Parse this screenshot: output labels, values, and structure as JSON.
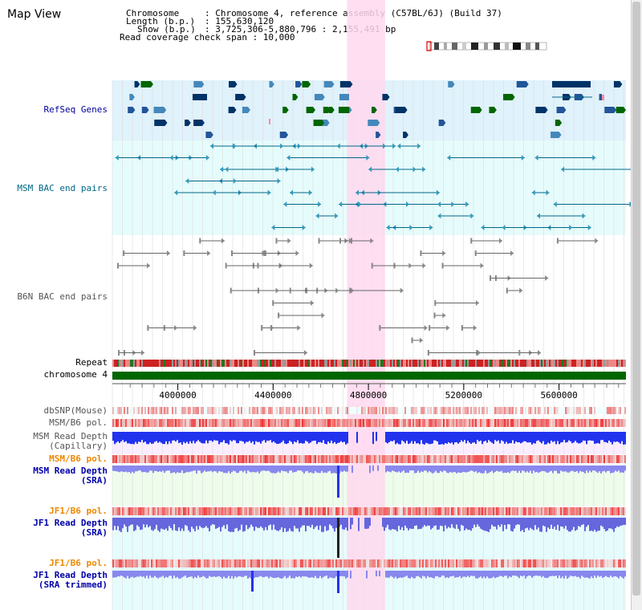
{
  "page": {
    "title": "Map View"
  },
  "header": {
    "chromosome_key": "Chromosome",
    "chromosome_val": ": Chromosome 4, reference assembly (C57BL/6J) (Build 37)",
    "length_key": "Length (b.p.)",
    "length_val": ": 155,630,120",
    "show_key": "Show (b.p.)",
    "show_val": ": 3,725,306-5,880,796 : 2,155,491 bp",
    "coverage_label": "Read coverage check span : 10,000"
  },
  "tracks": {
    "refseq": {
      "label": "RefSeq Genes",
      "color": "#000099",
      "bg": "#e0f2fb"
    },
    "msm_bac": {
      "label": "MSM BAC end pairs",
      "color": "#006688",
      "bg": "#e6fcfc"
    },
    "b6n_bac": {
      "label": "B6N BAC end pairs",
      "color": "#555555"
    },
    "repeat": {
      "label": "Repeat",
      "color": "#000000"
    },
    "chromosome": {
      "label": "chromosome 4",
      "color": "#000000",
      "bar": "#006600"
    },
    "dbsnp": {
      "label": "dbSNP(Mouse)",
      "color": "#555555"
    },
    "msm_b6_pol": {
      "label": "MSM/B6 pol.",
      "color": "#555555"
    },
    "msm_depth_cap": {
      "label": "MSM Read Depth\n(Capillary)",
      "color": "#555555"
    },
    "msm_b6_pol2": {
      "label": "MSM/B6 pol.",
      "color": "#ee8800"
    },
    "msm_depth_sra": {
      "label": "MSM Read Depth\n(SRA)",
      "color": "#0000aa"
    },
    "jf1_b6_pol": {
      "label": "JF1/B6 pol.",
      "color": "#ee8800"
    },
    "jf1_depth_sra": {
      "label": "JF1 Read Depth\n(SRA)",
      "color": "#0000aa"
    },
    "jf1_b6_pol2": {
      "label": "JF1/B6 pol.",
      "color": "#ee8800"
    },
    "jf1_depth_trim": {
      "label": "JF1 Read Depth\n(SRA trimmed)",
      "color": "#0000aa"
    }
  },
  "axis": {
    "ticks": [
      "4000000",
      "4400000",
      "4800000",
      "5200000",
      "5600000"
    ],
    "range": [
      3725306,
      5880796
    ]
  },
  "highlight": {
    "start": 4710000,
    "end": 4870000,
    "color": "#ffd8ee"
  }
}
